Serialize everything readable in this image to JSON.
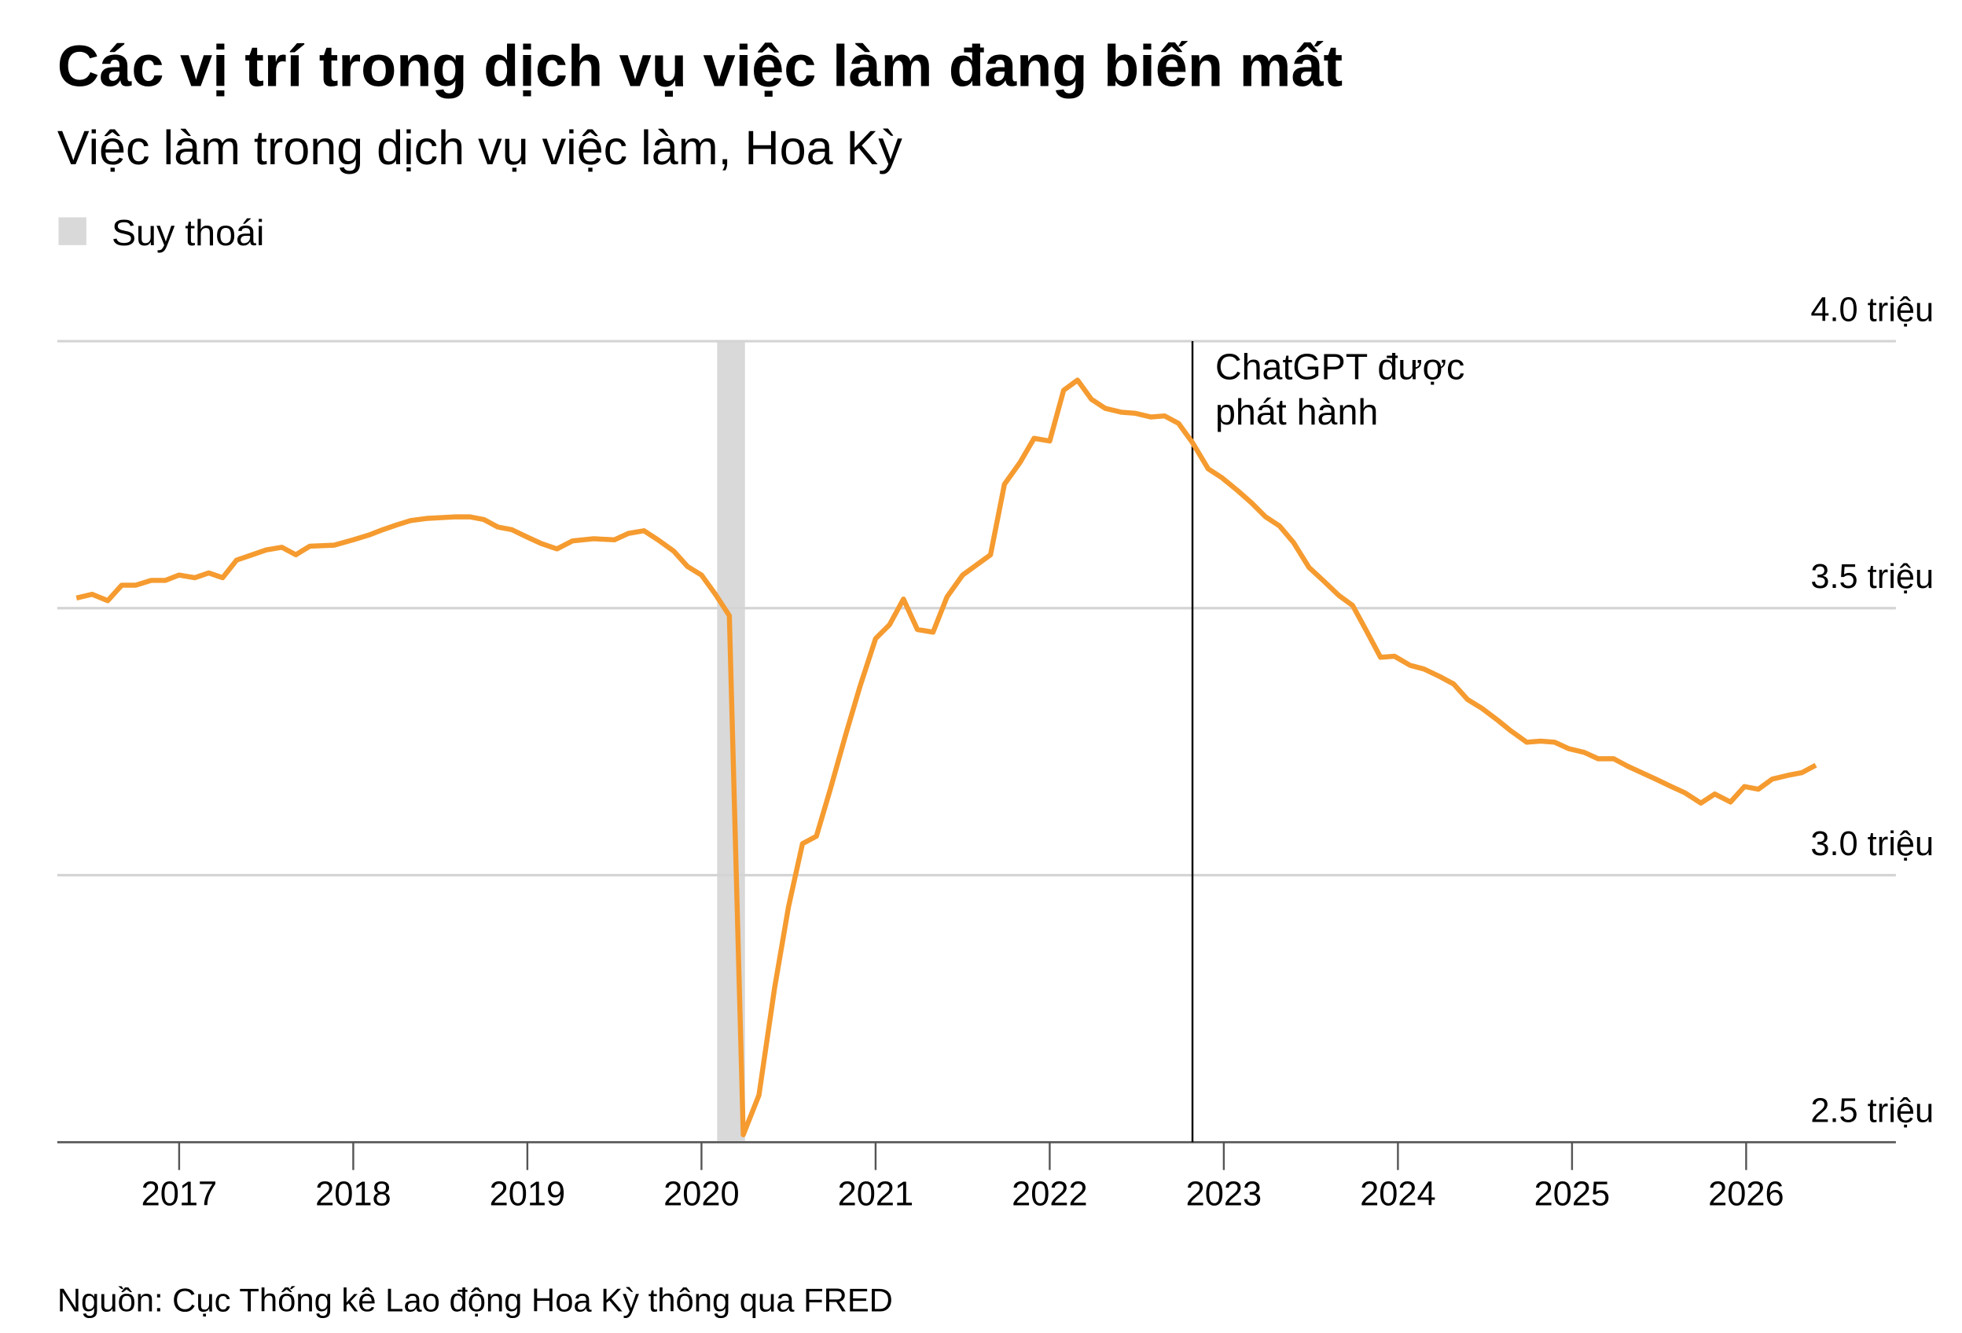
{
  "chart_data": {
    "type": "line",
    "title": "Các vị trí trong dịch vụ việc làm đang biến mất",
    "subtitle": "Việc làm trong dịch vụ việc làm, Hoa Kỳ",
    "source": "Nguồn: Cục Thống kê Lao động Hoa Kỳ thông qua FRED",
    "recession": {
      "name": "Suy thoái",
      "start": 2020.09,
      "end": 2020.25,
      "color": "#d9d9d9"
    },
    "annotation": {
      "lines": [
        "ChatGPT được",
        "phát hành"
      ],
      "x": 2022.82
    },
    "xlim": [
      2016.3,
      2026.86
    ],
    "xticks": [
      2017,
      2018,
      2019,
      2020,
      2021,
      2022,
      2023,
      2024,
      2025,
      2026
    ],
    "ylim": [
      2.5,
      4.0
    ],
    "yticks": [
      {
        "value": 2.5,
        "label": "2.5 triệu"
      },
      {
        "value": 3.0,
        "label": "3.0 triệu"
      },
      {
        "value": 3.5,
        "label": "3.5 triệu"
      },
      {
        "value": 4.0,
        "label": "4.0 triệu"
      }
    ],
    "grid": true,
    "x": [
      2016.41,
      2016.5,
      2016.59,
      2016.67,
      2016.75,
      2016.84,
      2016.92,
      2017.0,
      2017.09,
      2017.17,
      2017.25,
      2017.33,
      2017.42,
      2017.5,
      2017.59,
      2017.67,
      2017.75,
      2017.89,
      2018.0,
      2018.09,
      2018.17,
      2018.25,
      2018.33,
      2018.42,
      2018.59,
      2018.67,
      2018.75,
      2018.83,
      2018.91,
      2019.0,
      2019.08,
      2019.17,
      2019.26,
      2019.38,
      2019.5,
      2019.58,
      2019.67,
      2019.75,
      2019.84,
      2019.92,
      2020.0,
      2020.08,
      2020.16,
      2020.24,
      2020.33,
      2020.42,
      2020.5,
      2020.58,
      2020.66,
      2020.74,
      2020.83,
      2020.91,
      2021.0,
      2021.08,
      2021.16,
      2021.24,
      2021.33,
      2021.41,
      2021.5,
      2021.58,
      2021.66,
      2021.74,
      2021.83,
      2021.91,
      2022.0,
      2022.08,
      2022.16,
      2022.24,
      2022.32,
      2022.41,
      2022.49,
      2022.58,
      2022.66,
      2022.74,
      2022.82,
      2022.91,
      2022.99,
      2023.08,
      2023.16,
      2023.24,
      2023.32,
      2023.4,
      2023.49,
      2023.57,
      2023.66,
      2023.74,
      2023.82,
      2023.9,
      2023.98,
      2024.07,
      2024.15,
      2024.24,
      2024.32,
      2024.4,
      2024.48,
      2024.57,
      2024.65,
      2024.74,
      2024.82,
      2024.9,
      2024.98,
      2025.07,
      2025.15,
      2025.24,
      2025.32,
      2025.4,
      2025.48,
      2025.57,
      2025.65,
      2025.74,
      2025.82,
      2025.91,
      2025.99,
      2026.07,
      2026.15,
      2026.24,
      2026.32,
      2026.4
    ],
    "series": [
      {
        "name": "Việc làm",
        "color": "#f59b30",
        "values": [
          3.519,
          3.526,
          3.514,
          3.543,
          3.543,
          3.552,
          3.552,
          3.562,
          3.557,
          3.566,
          3.557,
          3.59,
          3.6,
          3.609,
          3.614,
          3.6,
          3.616,
          3.618,
          3.628,
          3.637,
          3.647,
          3.656,
          3.664,
          3.668,
          3.671,
          3.671,
          3.666,
          3.652,
          3.647,
          3.633,
          3.621,
          3.611,
          3.626,
          3.63,
          3.628,
          3.64,
          3.645,
          3.628,
          3.607,
          3.578,
          3.562,
          3.526,
          3.486,
          2.514,
          2.588,
          2.789,
          2.941,
          3.059,
          3.073,
          3.161,
          3.265,
          3.353,
          3.443,
          3.469,
          3.517,
          3.46,
          3.455,
          3.521,
          3.562,
          3.581,
          3.6,
          3.732,
          3.773,
          3.818,
          3.813,
          3.908,
          3.927,
          3.891,
          3.874,
          3.867,
          3.865,
          3.858,
          3.86,
          3.846,
          3.81,
          3.761,
          3.744,
          3.72,
          3.697,
          3.671,
          3.654,
          3.623,
          3.576,
          3.552,
          3.524,
          3.505,
          3.457,
          3.408,
          3.41,
          3.393,
          3.386,
          3.372,
          3.358,
          3.329,
          3.313,
          3.291,
          3.27,
          3.249,
          3.251,
          3.249,
          3.237,
          3.23,
          3.218,
          3.218,
          3.204,
          3.192,
          3.18,
          3.166,
          3.154,
          3.135,
          3.152,
          3.137,
          3.166,
          3.161,
          3.18,
          3.187,
          3.192,
          3.206
        ]
      }
    ]
  }
}
